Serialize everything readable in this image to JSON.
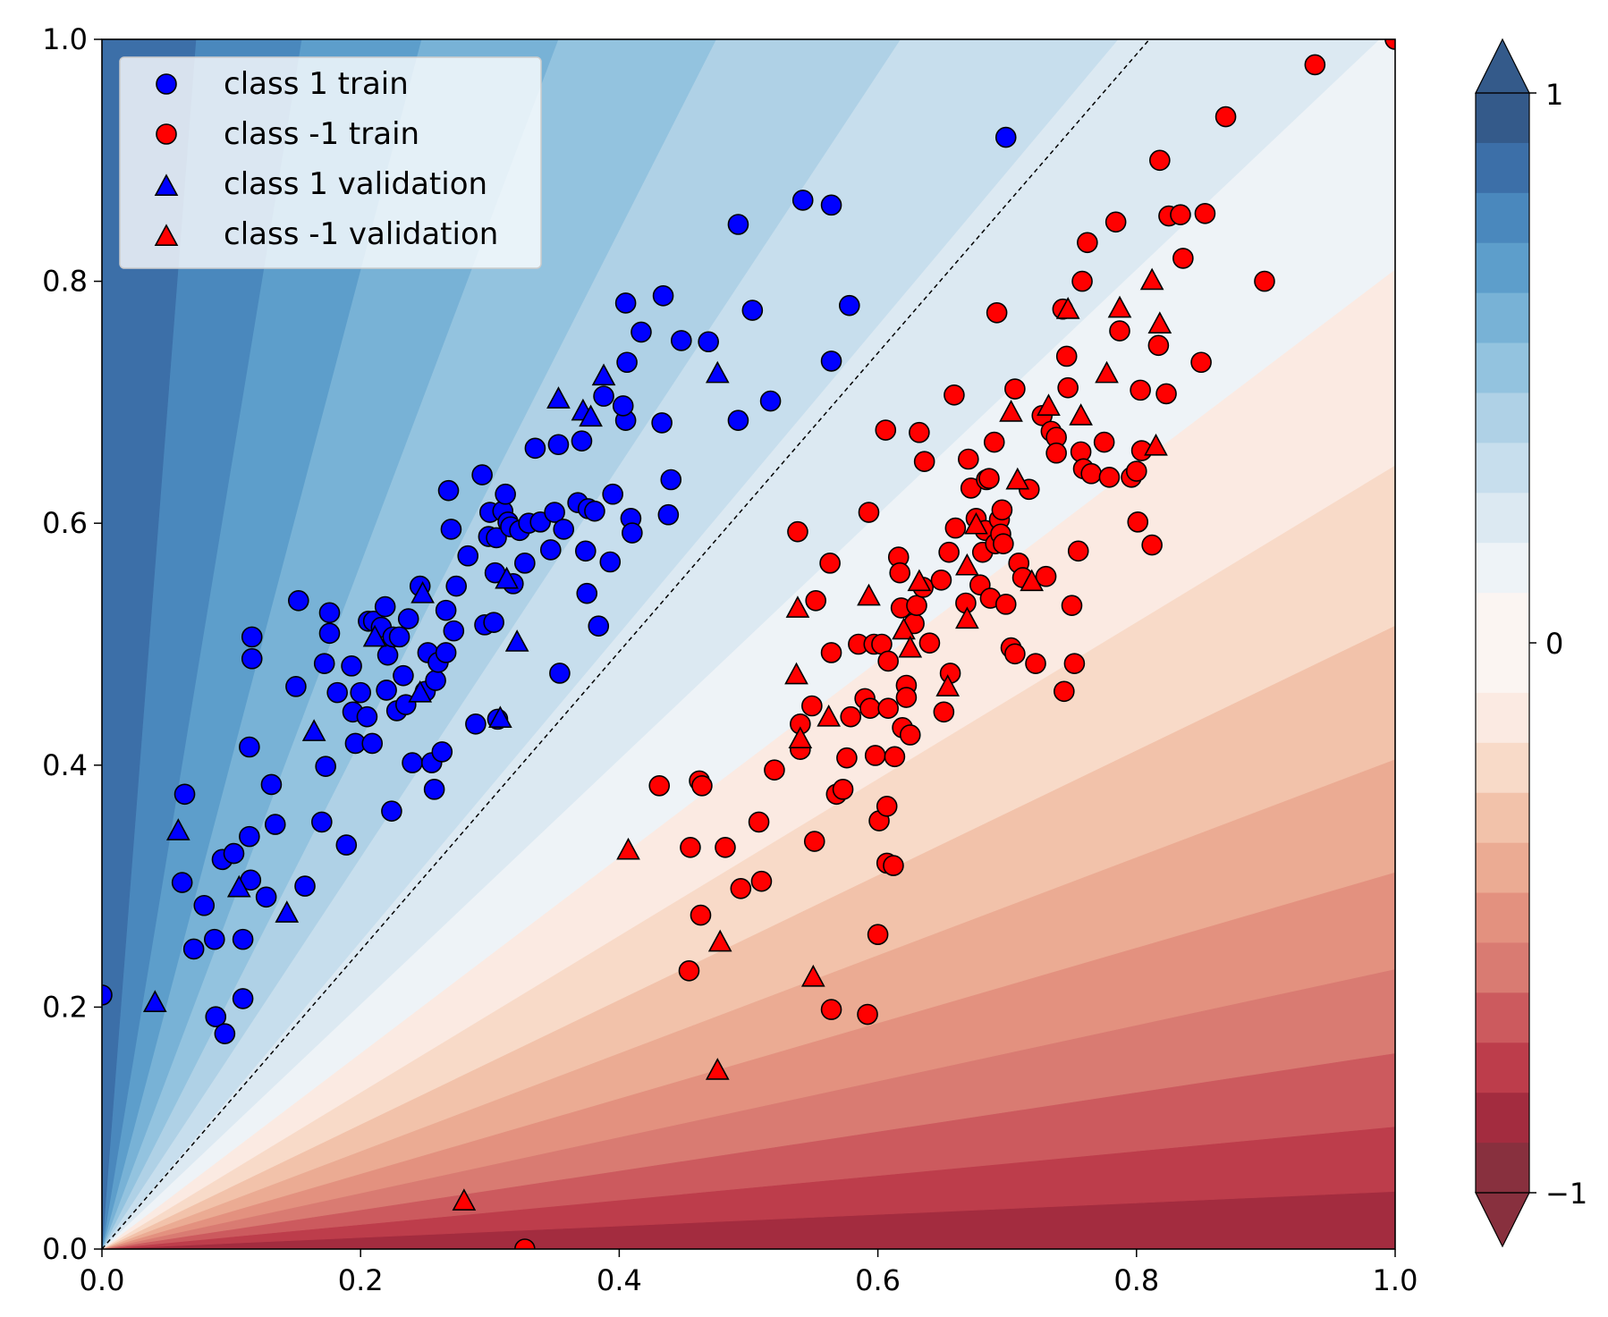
{
  "chart_data": {
    "type": "scatter",
    "title": "",
    "xlabel": "",
    "ylabel": "",
    "xlim": [
      0.0,
      1.0
    ],
    "ylim": [
      0.0,
      1.0
    ],
    "xticks": [
      "0.0",
      "0.2",
      "0.4",
      "0.6",
      "0.8",
      "1.0"
    ],
    "yticks": [
      "0.0",
      "0.2",
      "0.4",
      "0.6",
      "0.8",
      "1.0"
    ],
    "legend_position": "top-left",
    "decision_boundary": {
      "x": [
        0.0,
        0.81
      ],
      "y": [
        0.0,
        1.0
      ]
    },
    "background": "filled contour of decision function, blue = positive, red = negative",
    "colorbar": {
      "range": [
        -1,
        1
      ],
      "ticks": [
        "1",
        "0",
        "−1"
      ],
      "tick_values": [
        1,
        0,
        -1
      ],
      "extend": "both"
    },
    "colors": {
      "class_1": "#0000ff",
      "class_neg1": "#ff0000",
      "edge": "#000000"
    },
    "series": [
      {
        "name": "class 1 train",
        "marker": "circle",
        "color": "#0000ff",
        "points": [
          [
            0.0,
            0.21
          ],
          [
            0.064,
            0.376
          ],
          [
            0.062,
            0.303
          ],
          [
            0.071,
            0.248
          ],
          [
            0.079,
            0.284
          ],
          [
            0.087,
            0.256
          ],
          [
            0.088,
            0.192
          ],
          [
            0.095,
            0.178
          ],
          [
            0.093,
            0.322
          ],
          [
            0.102,
            0.327
          ],
          [
            0.109,
            0.256
          ],
          [
            0.109,
            0.207
          ],
          [
            0.114,
            0.341
          ],
          [
            0.114,
            0.415
          ],
          [
            0.115,
            0.305
          ],
          [
            0.116,
            0.488
          ],
          [
            0.116,
            0.506
          ],
          [
            0.127,
            0.291
          ],
          [
            0.131,
            0.384
          ],
          [
            0.134,
            0.351
          ],
          [
            0.15,
            0.465
          ],
          [
            0.152,
            0.536
          ],
          [
            0.157,
            0.3
          ],
          [
            0.17,
            0.353
          ],
          [
            0.173,
            0.399
          ],
          [
            0.172,
            0.484
          ],
          [
            0.176,
            0.509
          ],
          [
            0.176,
            0.526
          ],
          [
            0.182,
            0.46
          ],
          [
            0.189,
            0.334
          ],
          [
            0.193,
            0.482
          ],
          [
            0.194,
            0.444
          ],
          [
            0.196,
            0.418
          ],
          [
            0.2,
            0.46
          ],
          [
            0.205,
            0.44
          ],
          [
            0.206,
            0.519
          ],
          [
            0.209,
            0.418
          ],
          [
            0.21,
            0.519
          ],
          [
            0.216,
            0.514
          ],
          [
            0.219,
            0.531
          ],
          [
            0.22,
            0.462
          ],
          [
            0.221,
            0.491
          ],
          [
            0.224,
            0.362
          ],
          [
            0.225,
            0.506
          ],
          [
            0.228,
            0.445
          ],
          [
            0.23,
            0.506
          ],
          [
            0.233,
            0.474
          ],
          [
            0.235,
            0.45
          ],
          [
            0.237,
            0.521
          ],
          [
            0.24,
            0.402
          ],
          [
            0.246,
            0.548
          ],
          [
            0.25,
            0.461
          ],
          [
            0.252,
            0.493
          ],
          [
            0.255,
            0.402
          ],
          [
            0.257,
            0.38
          ],
          [
            0.258,
            0.47
          ],
          [
            0.26,
            0.485
          ],
          [
            0.263,
            0.411
          ],
          [
            0.266,
            0.493
          ],
          [
            0.266,
            0.528
          ],
          [
            0.268,
            0.627
          ],
          [
            0.27,
            0.595
          ],
          [
            0.272,
            0.511
          ],
          [
            0.274,
            0.548
          ],
          [
            0.283,
            0.573
          ],
          [
            0.289,
            0.434
          ],
          [
            0.294,
            0.64
          ],
          [
            0.296,
            0.516
          ],
          [
            0.299,
            0.589
          ],
          [
            0.3,
            0.609
          ],
          [
            0.303,
            0.518
          ],
          [
            0.304,
            0.559
          ],
          [
            0.305,
            0.588
          ],
          [
            0.306,
            0.438
          ],
          [
            0.31,
            0.61
          ],
          [
            0.312,
            0.624
          ],
          [
            0.314,
            0.601
          ],
          [
            0.316,
            0.597
          ],
          [
            0.318,
            0.55
          ],
          [
            0.323,
            0.594
          ],
          [
            0.327,
            0.567
          ],
          [
            0.33,
            0.6
          ],
          [
            0.335,
            0.662
          ],
          [
            0.339,
            0.601
          ],
          [
            0.347,
            0.578
          ],
          [
            0.35,
            0.609
          ],
          [
            0.353,
            0.665
          ],
          [
            0.354,
            0.476
          ],
          [
            0.357,
            0.595
          ],
          [
            0.368,
            0.617
          ],
          [
            0.371,
            0.668
          ],
          [
            0.374,
            0.577
          ],
          [
            0.375,
            0.542
          ],
          [
            0.376,
            0.612
          ],
          [
            0.381,
            0.61
          ],
          [
            0.384,
            0.515
          ],
          [
            0.388,
            0.705
          ],
          [
            0.393,
            0.568
          ],
          [
            0.395,
            0.624
          ],
          [
            0.405,
            0.685
          ],
          [
            0.403,
            0.697
          ],
          [
            0.405,
            0.782
          ],
          [
            0.406,
            0.733
          ],
          [
            0.409,
            0.604
          ],
          [
            0.41,
            0.592
          ],
          [
            0.417,
            0.758
          ],
          [
            0.433,
            0.683
          ],
          [
            0.434,
            0.788
          ],
          [
            0.438,
            0.607
          ],
          [
            0.44,
            0.636
          ],
          [
            0.448,
            0.751
          ],
          [
            0.469,
            0.75
          ],
          [
            0.492,
            0.685
          ],
          [
            0.492,
            0.847
          ],
          [
            0.503,
            0.776
          ],
          [
            0.517,
            0.701
          ],
          [
            0.542,
            0.867
          ],
          [
            0.564,
            0.863
          ],
          [
            0.564,
            0.734
          ],
          [
            0.578,
            0.78
          ],
          [
            0.699,
            0.919
          ]
        ]
      },
      {
        "name": "class -1 train",
        "marker": "circle",
        "color": "#ff0000",
        "points": [
          [
            0.327,
            0.0
          ],
          [
            0.431,
            0.383
          ],
          [
            0.454,
            0.23
          ],
          [
            0.455,
            0.332
          ],
          [
            0.462,
            0.387
          ],
          [
            0.463,
            0.276
          ],
          [
            0.464,
            0.383
          ],
          [
            0.482,
            0.332
          ],
          [
            0.494,
            0.298
          ],
          [
            0.508,
            0.353
          ],
          [
            0.51,
            0.304
          ],
          [
            0.52,
            0.396
          ],
          [
            0.538,
            0.593
          ],
          [
            0.54,
            0.434
          ],
          [
            0.54,
            0.413
          ],
          [
            0.549,
            0.449
          ],
          [
            0.551,
            0.337
          ],
          [
            0.552,
            0.536
          ],
          [
            0.563,
            0.567
          ],
          [
            0.564,
            0.493
          ],
          [
            0.564,
            0.198
          ],
          [
            0.568,
            0.376
          ],
          [
            0.573,
            0.38
          ],
          [
            0.576,
            0.406
          ],
          [
            0.579,
            0.44
          ],
          [
            0.585,
            0.5
          ],
          [
            0.59,
            0.455
          ],
          [
            0.592,
            0.194
          ],
          [
            0.593,
            0.609
          ],
          [
            0.594,
            0.447
          ],
          [
            0.597,
            0.5
          ],
          [
            0.598,
            0.408
          ],
          [
            0.6,
            0.26
          ],
          [
            0.601,
            0.354
          ],
          [
            0.603,
            0.5
          ],
          [
            0.606,
            0.677
          ],
          [
            0.607,
            0.319
          ],
          [
            0.607,
            0.366
          ],
          [
            0.608,
            0.486
          ],
          [
            0.608,
            0.447
          ],
          [
            0.612,
            0.317
          ],
          [
            0.613,
            0.407
          ],
          [
            0.616,
            0.572
          ],
          [
            0.617,
            0.559
          ],
          [
            0.618,
            0.53
          ],
          [
            0.619,
            0.431
          ],
          [
            0.622,
            0.466
          ],
          [
            0.622,
            0.456
          ],
          [
            0.625,
            0.425
          ],
          [
            0.628,
            0.517
          ],
          [
            0.63,
            0.532
          ],
          [
            0.632,
            0.675
          ],
          [
            0.635,
            0.547
          ],
          [
            0.636,
            0.651
          ],
          [
            0.64,
            0.501
          ],
          [
            0.649,
            0.553
          ],
          [
            0.651,
            0.444
          ],
          [
            0.655,
            0.576
          ],
          [
            0.656,
            0.476
          ],
          [
            0.659,
            0.706
          ],
          [
            0.66,
            0.596
          ],
          [
            0.668,
            0.534
          ],
          [
            0.67,
            0.653
          ],
          [
            0.672,
            0.629
          ],
          [
            0.676,
            0.604
          ],
          [
            0.679,
            0.549
          ],
          [
            0.681,
            0.576
          ],
          [
            0.683,
            0.594
          ],
          [
            0.684,
            0.636
          ],
          [
            0.686,
            0.637
          ],
          [
            0.687,
            0.538
          ],
          [
            0.69,
            0.667
          ],
          [
            0.691,
            0.583
          ],
          [
            0.692,
            0.774
          ],
          [
            0.694,
            0.603
          ],
          [
            0.695,
            0.591
          ],
          [
            0.696,
            0.611
          ],
          [
            0.697,
            0.583
          ],
          [
            0.699,
            0.533
          ],
          [
            0.703,
            0.497
          ],
          [
            0.706,
            0.711
          ],
          [
            0.706,
            0.492
          ],
          [
            0.709,
            0.567
          ],
          [
            0.712,
            0.555
          ],
          [
            0.717,
            0.628
          ],
          [
            0.722,
            0.484
          ],
          [
            0.727,
            0.689
          ],
          [
            0.73,
            0.556
          ],
          [
            0.734,
            0.676
          ],
          [
            0.738,
            0.671
          ],
          [
            0.738,
            0.658
          ],
          [
            0.743,
            0.777
          ],
          [
            0.744,
            0.461
          ],
          [
            0.746,
            0.738
          ],
          [
            0.747,
            0.712
          ],
          [
            0.75,
            0.532
          ],
          [
            0.752,
            0.484
          ],
          [
            0.755,
            0.577
          ],
          [
            0.757,
            0.659
          ],
          [
            0.758,
            0.8
          ],
          [
            0.759,
            0.645
          ],
          [
            0.762,
            0.832
          ],
          [
            0.765,
            0.641
          ],
          [
            0.775,
            0.667
          ],
          [
            0.779,
            0.638
          ],
          [
            0.784,
            0.849
          ],
          [
            0.787,
            0.759
          ],
          [
            0.796,
            0.638
          ],
          [
            0.8,
            0.643
          ],
          [
            0.801,
            0.601
          ],
          [
            0.803,
            0.71
          ],
          [
            0.804,
            0.66
          ],
          [
            0.812,
            0.582
          ],
          [
            0.817,
            0.747
          ],
          [
            0.818,
            0.9
          ],
          [
            0.823,
            0.707
          ],
          [
            0.825,
            0.854
          ],
          [
            0.834,
            0.855
          ],
          [
            0.836,
            0.819
          ],
          [
            0.85,
            0.733
          ],
          [
            0.853,
            0.856
          ],
          [
            0.869,
            0.936
          ],
          [
            0.899,
            0.8
          ],
          [
            0.938,
            0.979
          ],
          [
            1.0,
            1.0
          ]
        ]
      },
      {
        "name": "class 1 validation",
        "marker": "triangle",
        "color": "#0000ff",
        "points": [
          [
            0.041,
            0.204
          ],
          [
            0.059,
            0.346
          ],
          [
            0.106,
            0.299
          ],
          [
            0.143,
            0.278
          ],
          [
            0.164,
            0.428
          ],
          [
            0.211,
            0.506
          ],
          [
            0.246,
            0.46
          ],
          [
            0.248,
            0.542
          ],
          [
            0.308,
            0.439
          ],
          [
            0.313,
            0.554
          ],
          [
            0.321,
            0.502
          ],
          [
            0.353,
            0.703
          ],
          [
            0.372,
            0.693
          ],
          [
            0.378,
            0.688
          ],
          [
            0.388,
            0.722
          ],
          [
            0.476,
            0.724
          ]
        ]
      },
      {
        "name": "class -1 validation",
        "marker": "triangle",
        "color": "#ff0000",
        "points": [
          [
            0.28,
            0.04
          ],
          [
            0.407,
            0.33
          ],
          [
            0.476,
            0.148
          ],
          [
            0.478,
            0.254
          ],
          [
            0.537,
            0.475
          ],
          [
            0.538,
            0.53
          ],
          [
            0.54,
            0.422
          ],
          [
            0.55,
            0.225
          ],
          [
            0.562,
            0.44
          ],
          [
            0.593,
            0.54
          ],
          [
            0.62,
            0.512
          ],
          [
            0.625,
            0.497
          ],
          [
            0.632,
            0.552
          ],
          [
            0.654,
            0.465
          ],
          [
            0.669,
            0.565
          ],
          [
            0.669,
            0.521
          ],
          [
            0.676,
            0.599
          ],
          [
            0.703,
            0.692
          ],
          [
            0.708,
            0.636
          ],
          [
            0.719,
            0.552
          ],
          [
            0.732,
            0.697
          ],
          [
            0.747,
            0.777
          ],
          [
            0.757,
            0.689
          ],
          [
            0.777,
            0.724
          ],
          [
            0.787,
            0.778
          ],
          [
            0.812,
            0.801
          ],
          [
            0.815,
            0.664
          ],
          [
            0.818,
            0.765
          ]
        ]
      }
    ]
  }
}
